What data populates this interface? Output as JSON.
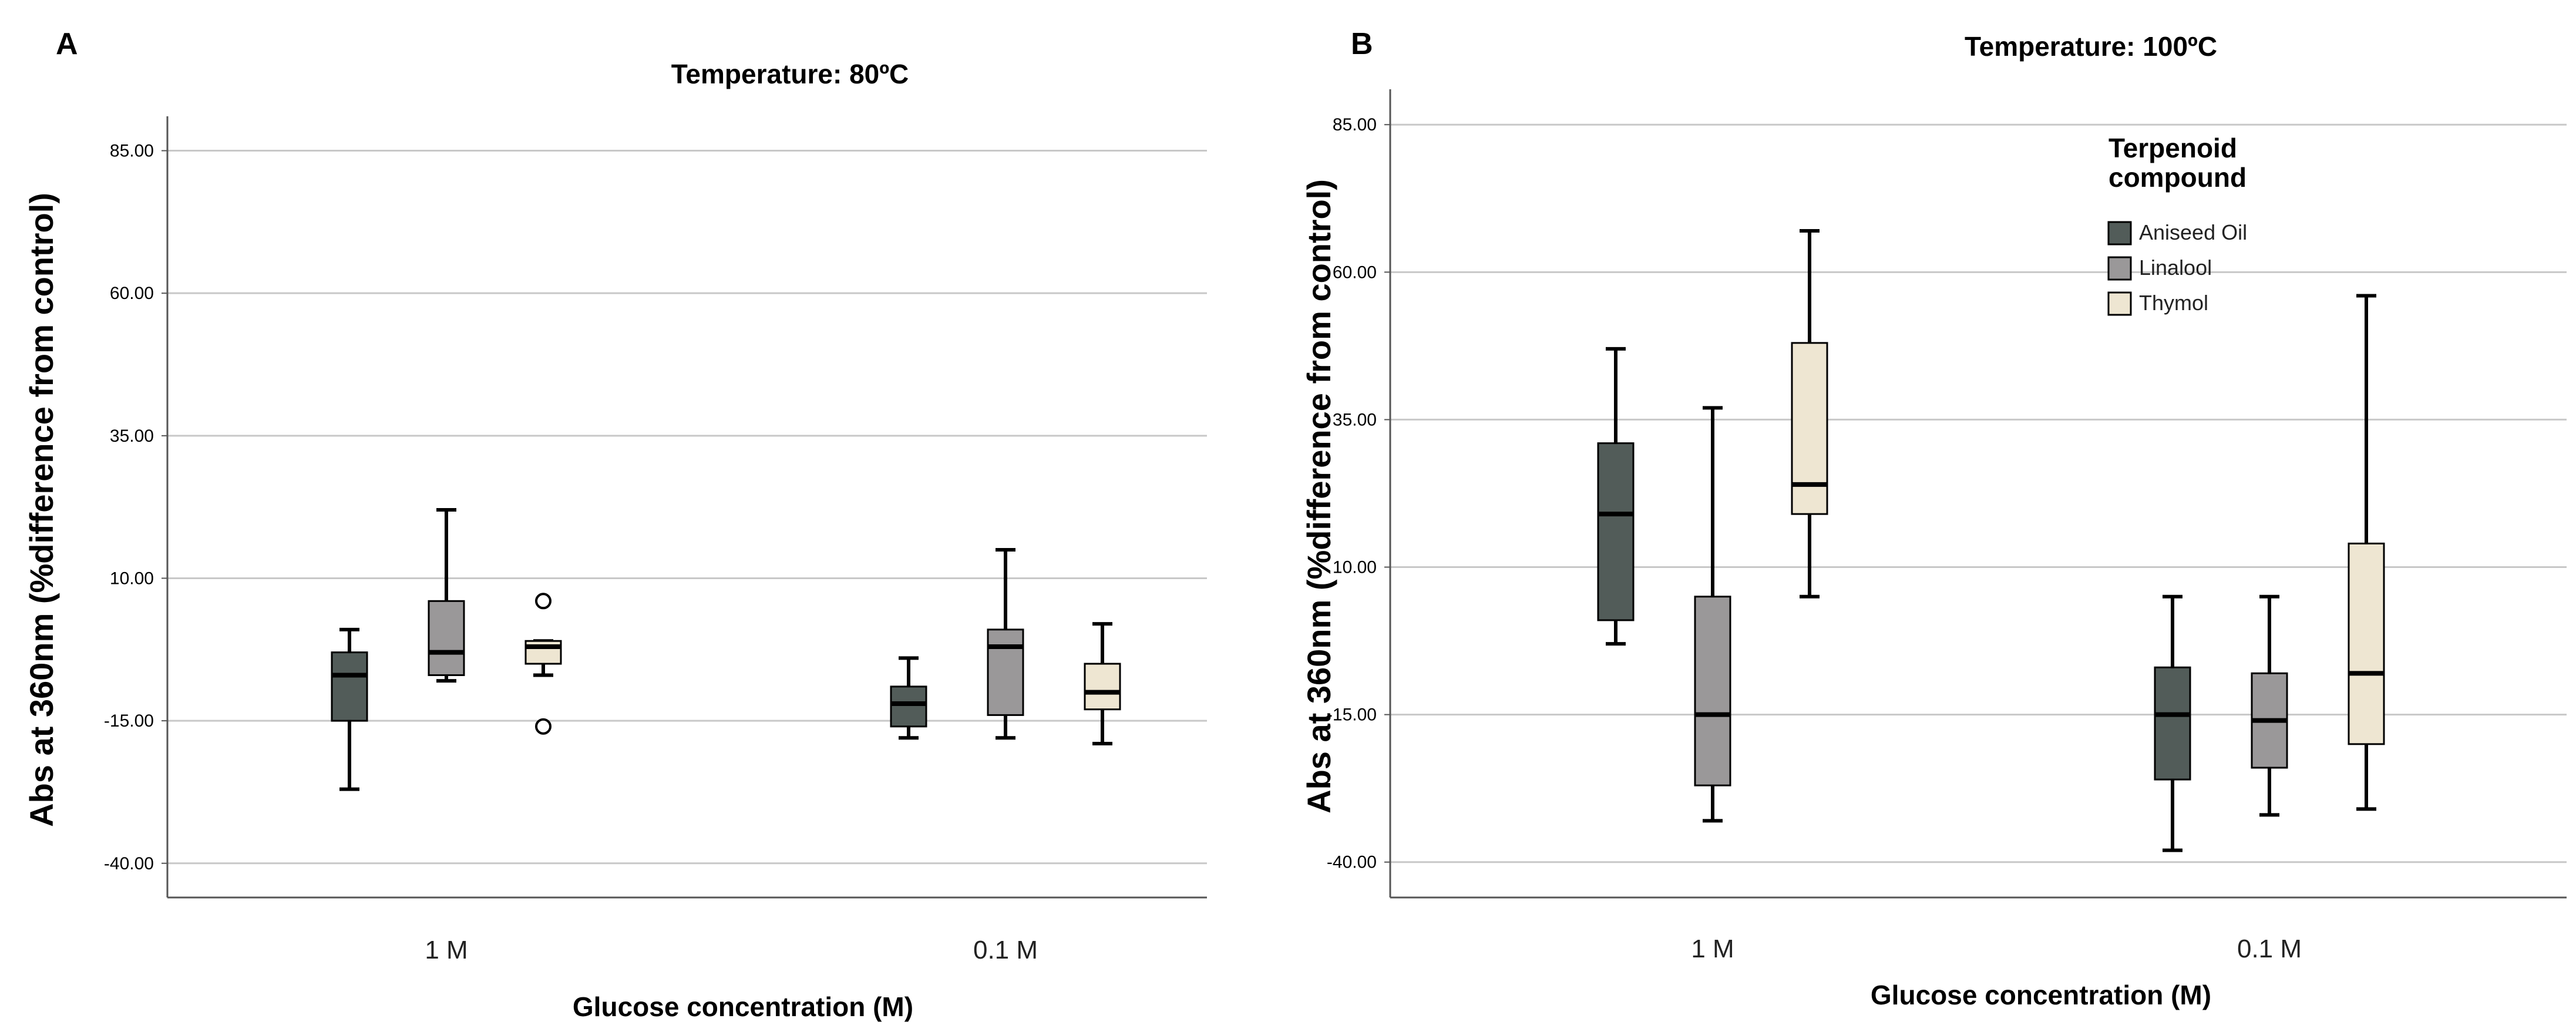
{
  "chart_data": [
    {
      "panel": "A",
      "type": "box",
      "title": "Temperature: 80ºC",
      "xlabel": "Glucose concentration (M)",
      "ylabel": "Abs at 360nm (%difference from control)",
      "ylim": [
        -46,
        90
      ],
      "yticks": [
        "85.00",
        "60.00",
        "35.00",
        "10.00",
        "-15.00",
        "-40.00"
      ],
      "categories": [
        "1 M",
        "0.1 M"
      ],
      "legend": false,
      "series": [
        {
          "name": "Aniseed Oil",
          "color": "#525c59",
          "boxes": [
            {
              "min": -27,
              "q1": -15,
              "median": -7,
              "q3": -3,
              "max": 1,
              "outliers": []
            },
            {
              "min": -18,
              "q1": -16,
              "median": -12,
              "q3": -9,
              "max": -4,
              "outliers": []
            }
          ]
        },
        {
          "name": "Linalool",
          "color": "#9a9899",
          "boxes": [
            {
              "min": -8,
              "q1": -7,
              "median": -3,
              "q3": 6,
              "max": 22,
              "outliers": []
            },
            {
              "min": -18,
              "q1": -14,
              "median": -2,
              "q3": 1,
              "max": 15,
              "outliers": []
            }
          ]
        },
        {
          "name": "Thymol",
          "color": "#eee6d2",
          "boxes": [
            {
              "min": -7,
              "q1": -5,
              "median": -2,
              "q3": -1,
              "max": -1,
              "outliers": [
                6,
                -16
              ]
            },
            {
              "min": -19,
              "q1": -13,
              "median": -10,
              "q3": -5,
              "max": 2,
              "outliers": []
            }
          ]
        }
      ]
    },
    {
      "panel": "B",
      "type": "box",
      "title": "Temperature: 100ºC",
      "xlabel": "Glucose concentration (M)",
      "ylabel": "Abs at 360nm (%difference from control)",
      "ylim": [
        -46,
        90
      ],
      "yticks": [
        "85.00",
        "60.00",
        "35.00",
        "10.00",
        "-15.00",
        "-40.00"
      ],
      "categories": [
        "1 M",
        "0.1 M"
      ],
      "legend": true,
      "legend_position": "top-right",
      "legend_title": [
        "Terpenoid",
        "compound"
      ],
      "series": [
        {
          "name": "Aniseed Oil",
          "color": "#525c59",
          "boxes": [
            {
              "min": -3,
              "q1": 1,
              "median": 19,
              "q3": 31,
              "max": 47,
              "outliers": []
            },
            {
              "min": -38,
              "q1": -26,
              "median": -15,
              "q3": -7,
              "max": 5,
              "outliers": []
            }
          ]
        },
        {
          "name": "Linalool",
          "color": "#9a9899",
          "boxes": [
            {
              "min": -33,
              "q1": -27,
              "median": -15,
              "q3": 5,
              "max": 37,
              "outliers": []
            },
            {
              "min": -32,
              "q1": -24,
              "median": -16,
              "q3": -8,
              "max": 5,
              "outliers": []
            }
          ]
        },
        {
          "name": "Thymol",
          "color": "#eee6d2",
          "boxes": [
            {
              "min": 5,
              "q1": 19,
              "median": 24,
              "q3": 48,
              "max": 67,
              "outliers": []
            },
            {
              "min": -31,
              "q1": -20,
              "median": -8,
              "q3": 14,
              "max": 56,
              "outliers": []
            }
          ]
        }
      ]
    }
  ]
}
